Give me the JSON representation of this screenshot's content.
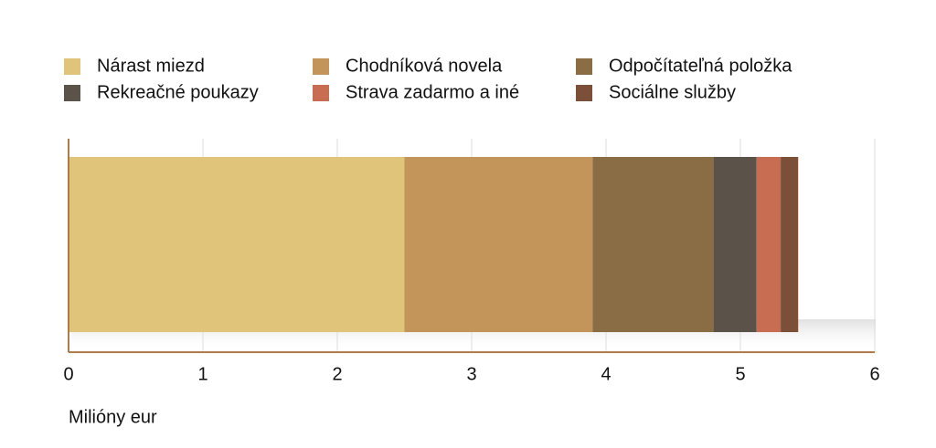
{
  "chart_data": {
    "type": "stacked-bar-horizontal",
    "categories": [
      null
    ],
    "series": [
      {
        "name": "Nárast miezd",
        "color": "#dfc47a",
        "values": [
          2.5
        ]
      },
      {
        "name": "Chodníková novela",
        "color": "#c4955b",
        "values": [
          1.4
        ]
      },
      {
        "name": "Odpočítateľná položka",
        "color": "#8a6c45",
        "values": [
          0.9
        ]
      },
      {
        "name": "Rekreačné poukazy",
        "color": "#5b534a",
        "values": [
          0.32
        ]
      },
      {
        "name": "Strava zadarmo a iné",
        "color": "#c86c52",
        "values": [
          0.18
        ]
      },
      {
        "name": "Sociálne služby",
        "color": "#7b4f38",
        "values": [
          0.13
        ]
      }
    ],
    "xlim": [
      0,
      6
    ],
    "xticks": [
      0,
      1,
      2,
      3,
      4,
      5,
      6
    ],
    "x_label": "Milióny eur",
    "grid": true,
    "legend": "top"
  }
}
